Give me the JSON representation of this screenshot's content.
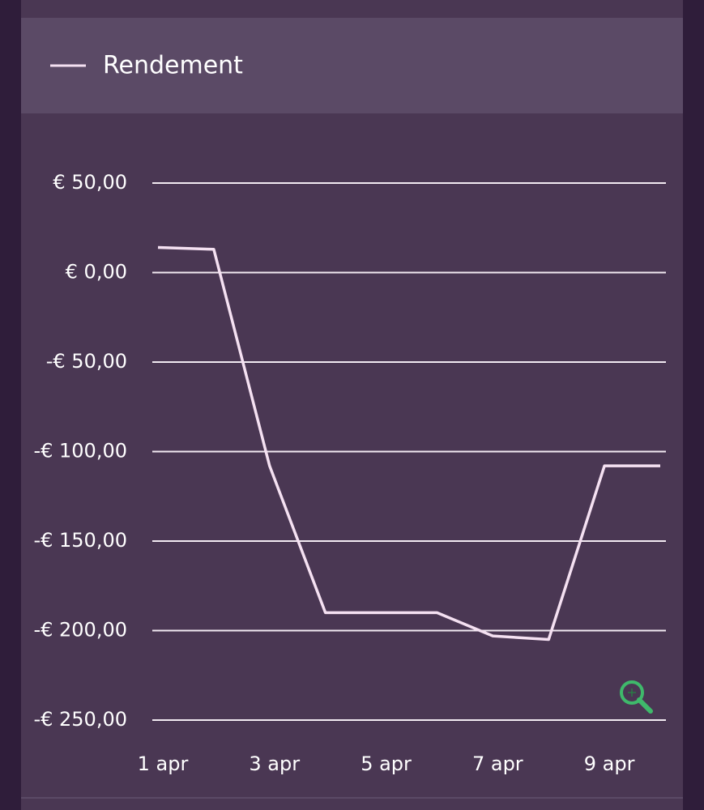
{
  "chart_data": {
    "type": "line",
    "categories": [
      "1 apr",
      null,
      "3 apr",
      null,
      "5 apr",
      null,
      "7 apr",
      null,
      "9 apr",
      null
    ],
    "series": [
      {
        "name": "Rendement",
        "color": "#f5e1f2",
        "values": [
          14,
          13,
          -108,
          -190,
          -190,
          -190,
          -203,
          -205,
          -108,
          -108
        ]
      }
    ],
    "ylim": [
      -250,
      50
    ],
    "yticks": [
      {
        "value": 50,
        "label": "€ 50,00"
      },
      {
        "value": 0,
        "label": "€ 0,00"
      },
      {
        "value": -50,
        "label": "-€ 50,00"
      },
      {
        "value": -100,
        "label": "-€ 100,00"
      },
      {
        "value": -150,
        "label": "-€ 150,00"
      },
      {
        "value": -200,
        "label": "-€ 200,00"
      },
      {
        "value": -250,
        "label": "-€ 250,00"
      }
    ],
    "grid": true
  }
}
